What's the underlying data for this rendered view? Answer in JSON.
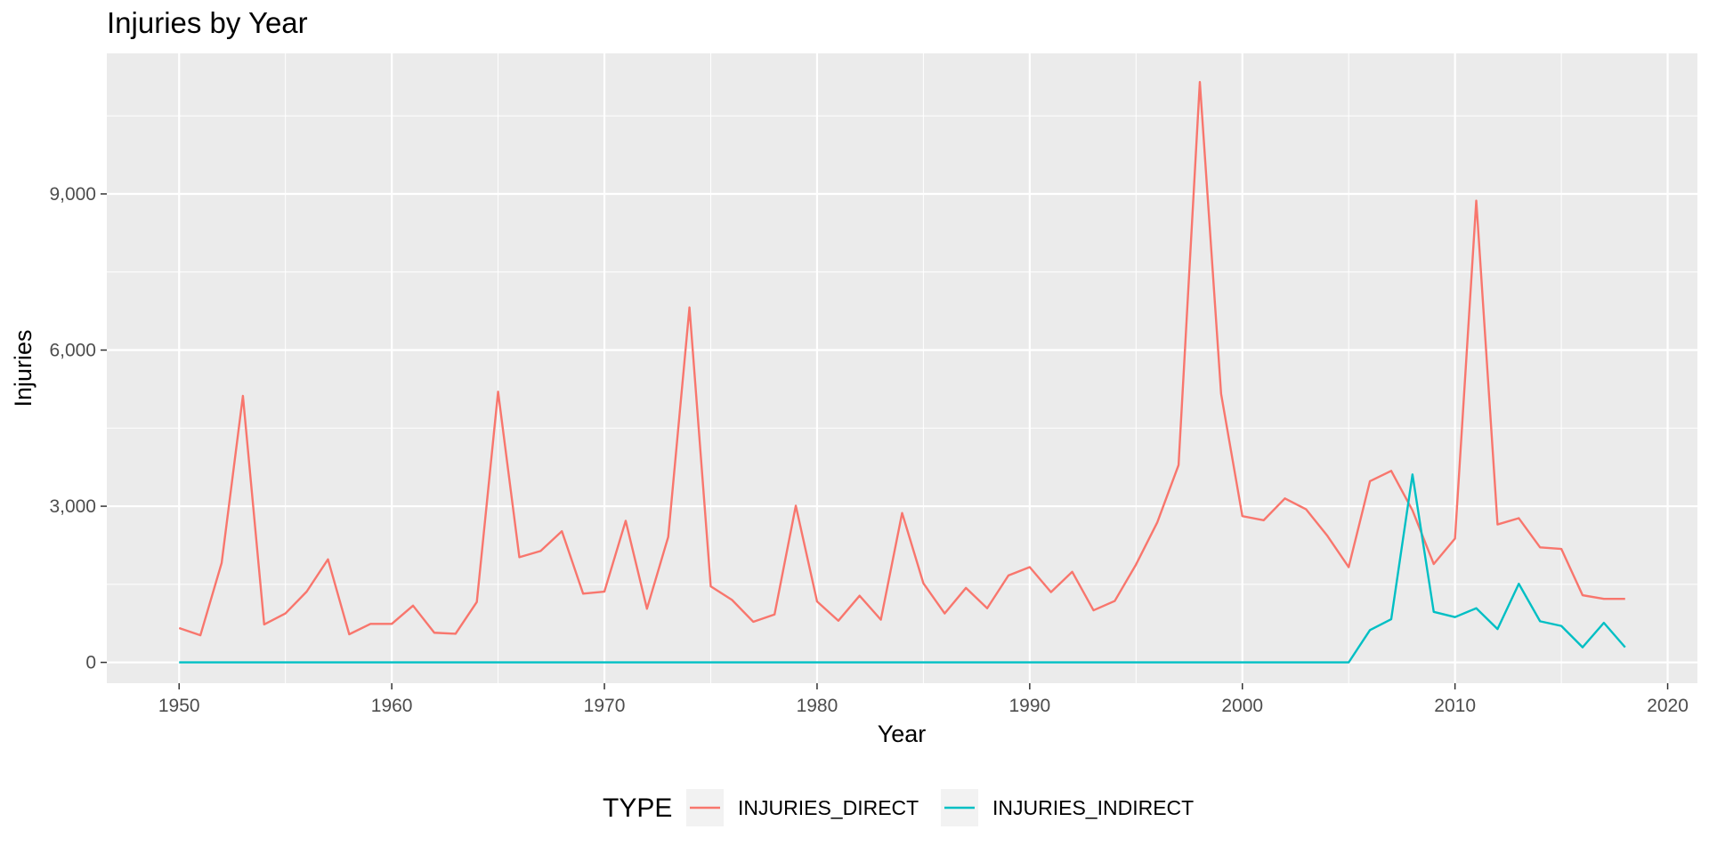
{
  "chart_data": {
    "type": "line",
    "title": "Injuries by Year",
    "xlabel": "Year",
    "ylabel": "Injuries",
    "xlim": [
      1946.6,
      2021.4
    ],
    "ylim": [
      -400,
      11700
    ],
    "x_ticks": [
      1950,
      1960,
      1970,
      1980,
      1990,
      2000,
      2010,
      2020
    ],
    "x_tick_labels": [
      "1950",
      "1960",
      "1970",
      "1980",
      "1990",
      "2000",
      "2010",
      "2020"
    ],
    "y_ticks": [
      0,
      3000,
      6000,
      9000
    ],
    "y_tick_labels": [
      "0",
      "3,000",
      "6,000",
      "9,000"
    ],
    "grid": true,
    "background": "#ebebeb",
    "legend": {
      "title": "TYPE",
      "position": "bottom"
    },
    "x": [
      1950,
      1951,
      1952,
      1953,
      1954,
      1955,
      1956,
      1957,
      1958,
      1959,
      1960,
      1961,
      1962,
      1963,
      1964,
      1965,
      1966,
      1967,
      1968,
      1969,
      1970,
      1971,
      1972,
      1973,
      1974,
      1975,
      1976,
      1977,
      1978,
      1979,
      1980,
      1981,
      1982,
      1983,
      1984,
      1985,
      1986,
      1987,
      1988,
      1989,
      1990,
      1991,
      1992,
      1993,
      1994,
      1995,
      1996,
      1997,
      1998,
      1999,
      2000,
      2001,
      2002,
      2003,
      2004,
      2005,
      2006,
      2007,
      2008,
      2009,
      2010,
      2011,
      2012,
      2013,
      2014,
      2015,
      2016,
      2017,
      2018
    ],
    "series": [
      {
        "name": "INJURIES_DIRECT",
        "color": "#f8766d",
        "values": [
          660,
          520,
          1910,
          5120,
          730,
          940,
          1360,
          1980,
          540,
          740,
          740,
          1090,
          570,
          550,
          1160,
          5200,
          2020,
          2140,
          2520,
          1320,
          1360,
          2720,
          1030,
          2410,
          6820,
          1460,
          1200,
          780,
          920,
          3010,
          1170,
          800,
          1280,
          820,
          2870,
          1520,
          940,
          1430,
          1040,
          1670,
          1830,
          1350,
          1740,
          1000,
          1180,
          1880,
          2690,
          3790,
          11150,
          5160,
          2810,
          2730,
          3150,
          2940,
          2430,
          1830,
          3480,
          3680,
          2920,
          1890,
          2380,
          8870,
          2650,
          2770,
          2210,
          2180,
          1290,
          1220,
          1220
        ]
      },
      {
        "name": "INJURIES_INDIRECT",
        "color": "#00bfc4",
        "values": [
          0,
          0,
          0,
          0,
          0,
          0,
          0,
          0,
          0,
          0,
          0,
          0,
          0,
          0,
          0,
          0,
          0,
          0,
          0,
          0,
          0,
          0,
          0,
          0,
          0,
          0,
          0,
          0,
          0,
          0,
          0,
          0,
          0,
          0,
          0,
          0,
          0,
          0,
          0,
          0,
          0,
          0,
          0,
          0,
          0,
          0,
          0,
          0,
          0,
          0,
          0,
          0,
          0,
          0,
          0,
          0,
          620,
          830,
          3610,
          970,
          870,
          1040,
          640,
          1510,
          790,
          700,
          290,
          760,
          290
        ]
      }
    ]
  }
}
